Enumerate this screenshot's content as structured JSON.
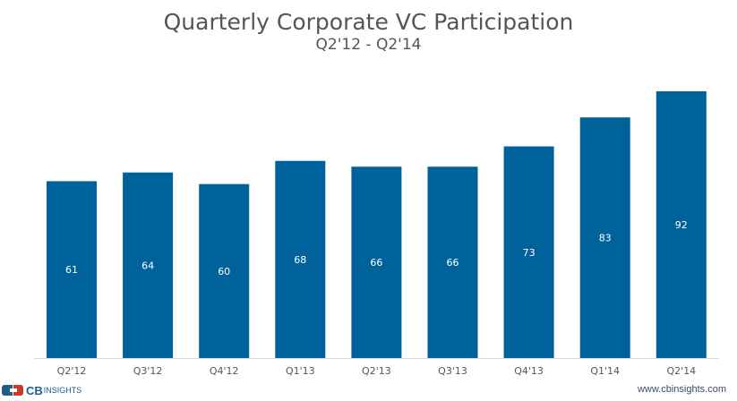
{
  "chart_data": {
    "type": "bar",
    "title": "Quarterly Corporate VC Participation",
    "subtitle": "Q2'12 - Q2'14",
    "categories": [
      "Q2'12",
      "Q3'12",
      "Q4'12",
      "Q1'13",
      "Q2'13",
      "Q3'13",
      "Q4'13",
      "Q1'14",
      "Q2'14"
    ],
    "values": [
      61,
      64,
      60,
      68,
      66,
      66,
      73,
      83,
      92
    ],
    "xlabel": "",
    "ylabel": "",
    "ylim": [
      0,
      92
    ],
    "grid": false,
    "legend": "none",
    "data_labels": true,
    "bar_color": "#00629b"
  },
  "footer": {
    "brand_cb": "CB",
    "brand_insights": "INSIGHTS",
    "url": "www.cbinsights.com"
  }
}
